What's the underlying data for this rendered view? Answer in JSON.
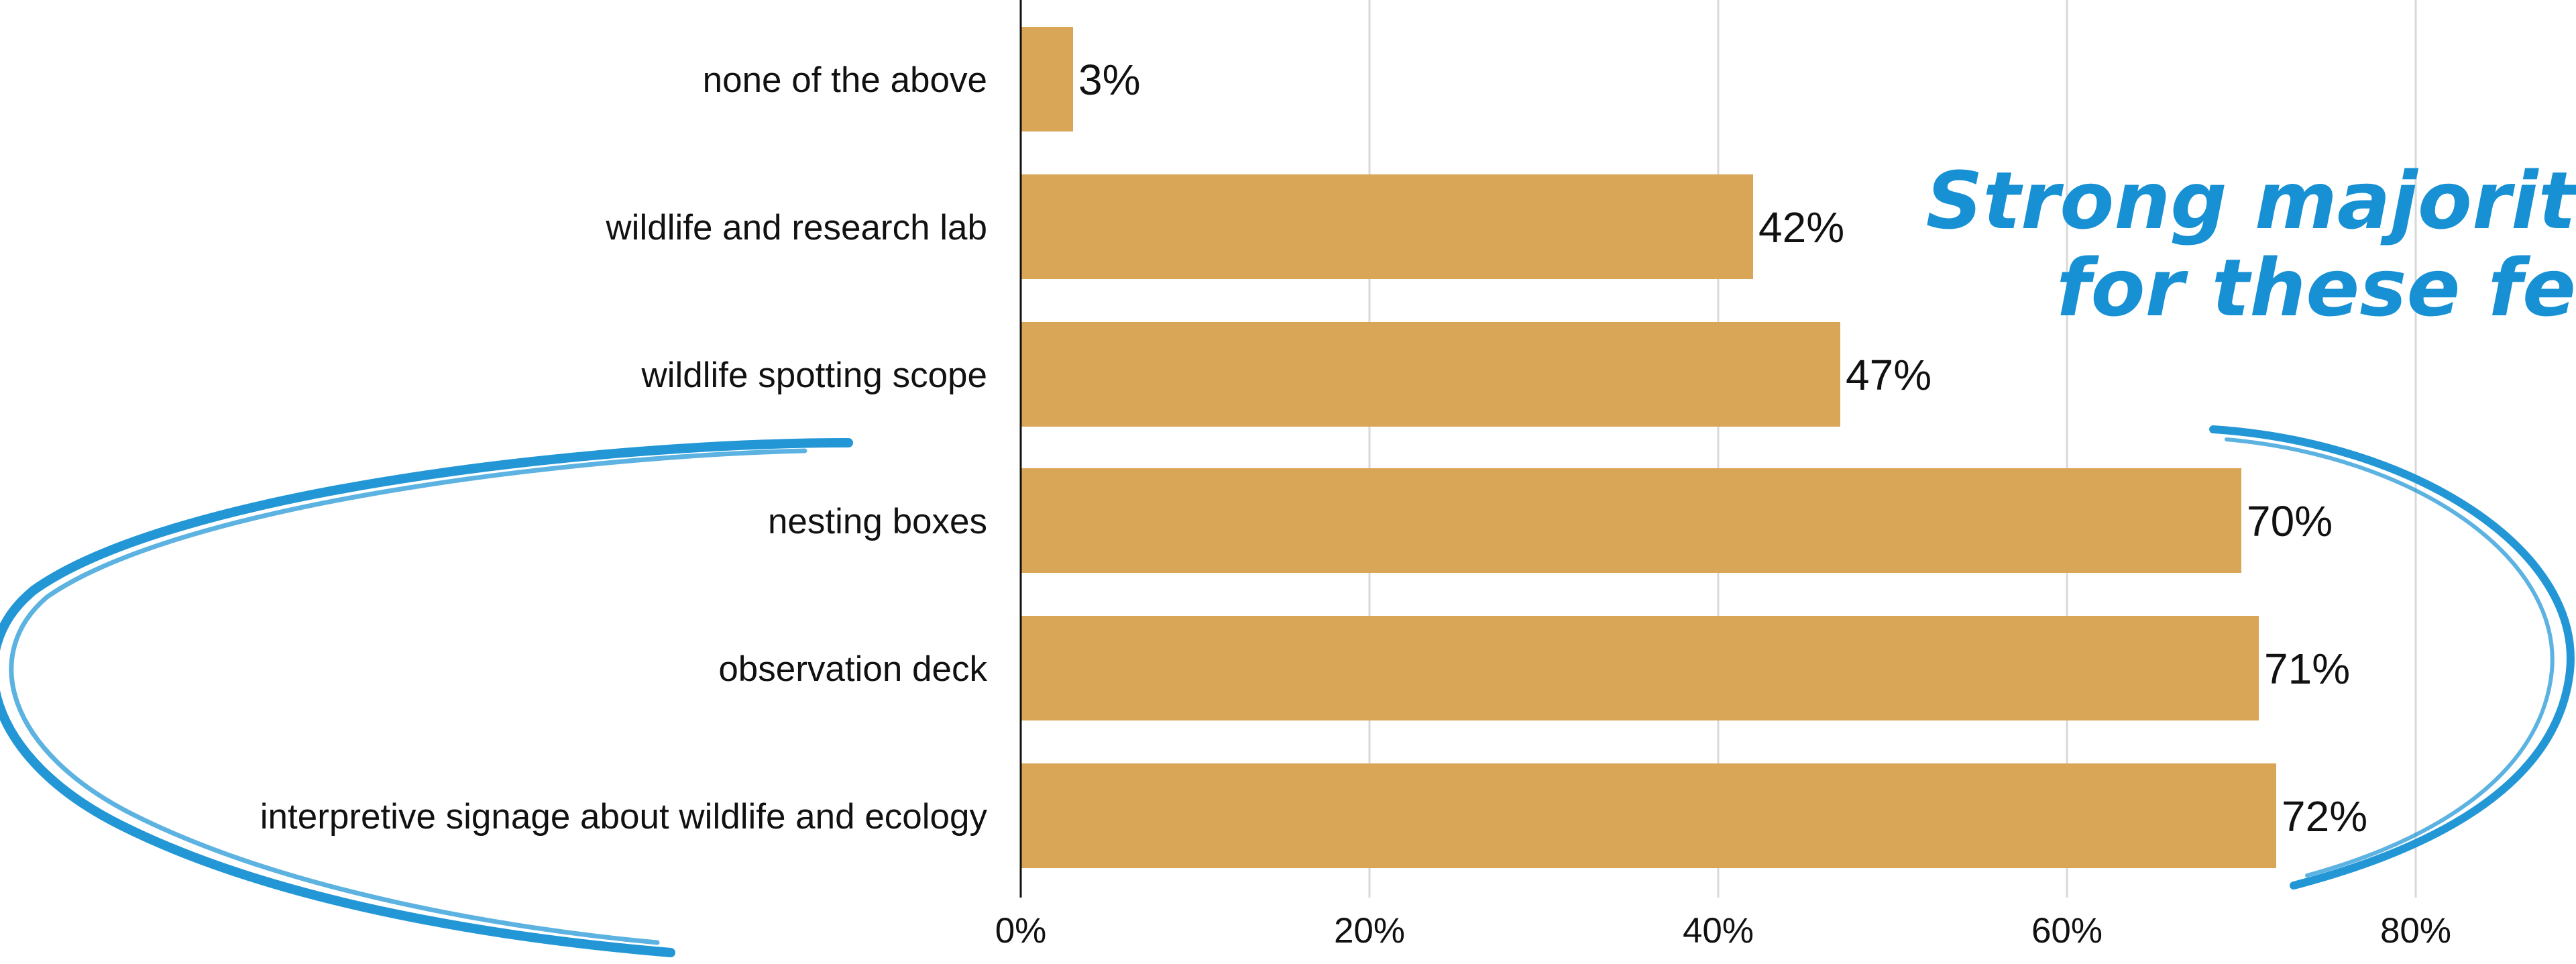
{
  "chart_data": {
    "type": "bar",
    "orientation": "horizontal",
    "categories": [
      "none of the above",
      "wildlife and research lab",
      "wildlife spotting scope",
      "nesting boxes",
      "observation deck",
      "interpretive signage about wildlife and ecology"
    ],
    "values": [
      3,
      42,
      47,
      70,
      71,
      72
    ],
    "value_labels": [
      "3%",
      "42%",
      "47%",
      "70%",
      "71%",
      "72%"
    ],
    "xticks": [
      "0%",
      "20%",
      "40%",
      "60%",
      "80%"
    ],
    "xtick_values": [
      0,
      20,
      40,
      60,
      80
    ],
    "xlim": [
      0,
      80
    ],
    "grid": true,
    "bar_color": "#D9A557",
    "annotation": {
      "lines": [
        "Strong majorit",
        "for these fe"
      ],
      "color": "#1791D4"
    }
  }
}
